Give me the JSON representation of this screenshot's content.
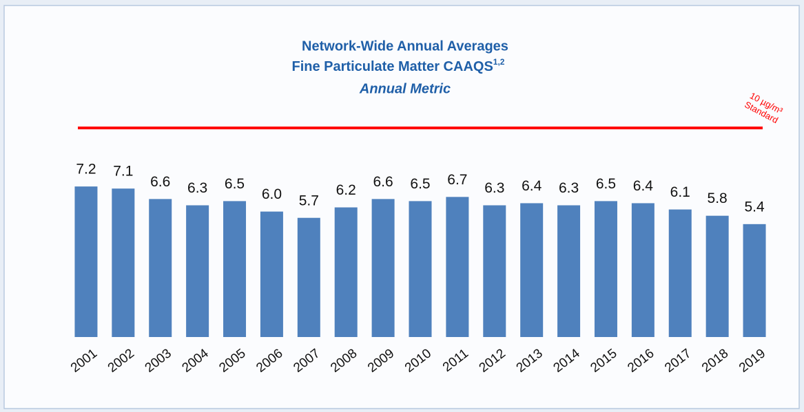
{
  "chart_data": {
    "type": "bar",
    "title": [
      "Network-Wide Annual Averages",
      "Fine Particulate Matter CAAQS"
    ],
    "title_superscript": "1,2",
    "subtitle": "Annual Metric",
    "categories": [
      "2001",
      "2002",
      "2003",
      "2004",
      "2005",
      "2006",
      "2007",
      "2008",
      "2009",
      "2010",
      "2011",
      "2012",
      "2013",
      "2014",
      "2015",
      "2016",
      "2017",
      "2018",
      "2019"
    ],
    "values": [
      7.2,
      7.1,
      6.6,
      6.3,
      6.5,
      6.0,
      5.7,
      6.2,
      6.6,
      6.5,
      6.7,
      6.3,
      6.4,
      6.3,
      6.5,
      6.4,
      6.1,
      5.8,
      5.4
    ],
    "value_labels": [
      "7.2",
      "7.1",
      "6.6",
      "6.3",
      "6.5",
      "6.0",
      "5.7",
      "6.2",
      "6.6",
      "6.5",
      "6.7",
      "6.3",
      "6.4",
      "6.3",
      "6.5",
      "6.4",
      "6.1",
      "5.8",
      "5.4"
    ],
    "color": "#4f81bd",
    "ylim": [
      0,
      10
    ],
    "reference_line": {
      "value": 10,
      "color": "#ff0000",
      "label": [
        "10 µg/m³",
        "Standard"
      ]
    }
  }
}
